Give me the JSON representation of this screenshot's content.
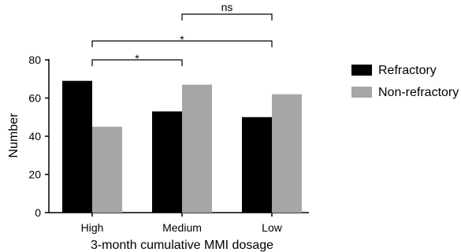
{
  "chart_data": {
    "type": "bar",
    "xlabel": "3-month cumulative MMI dosage",
    "ylabel": "Number",
    "ylim": [
      0,
      80
    ],
    "yticks": [
      0,
      20,
      40,
      60,
      80
    ],
    "categories": [
      "High",
      "Medium",
      "Low"
    ],
    "series": [
      {
        "name": "Refractory",
        "color": "#000000",
        "values": [
          69,
          53,
          50
        ]
      },
      {
        "name": "Non-refractory",
        "color": "#a6a6a6",
        "values": [
          45,
          67,
          62
        ]
      }
    ],
    "legend_position": "right",
    "grid": false,
    "annotations": [
      {
        "from": "High",
        "to": "Medium",
        "label": "*"
      },
      {
        "from": "High",
        "to": "Low",
        "label": "*"
      },
      {
        "from": "Medium",
        "to": "Low",
        "label": "ns"
      }
    ]
  }
}
